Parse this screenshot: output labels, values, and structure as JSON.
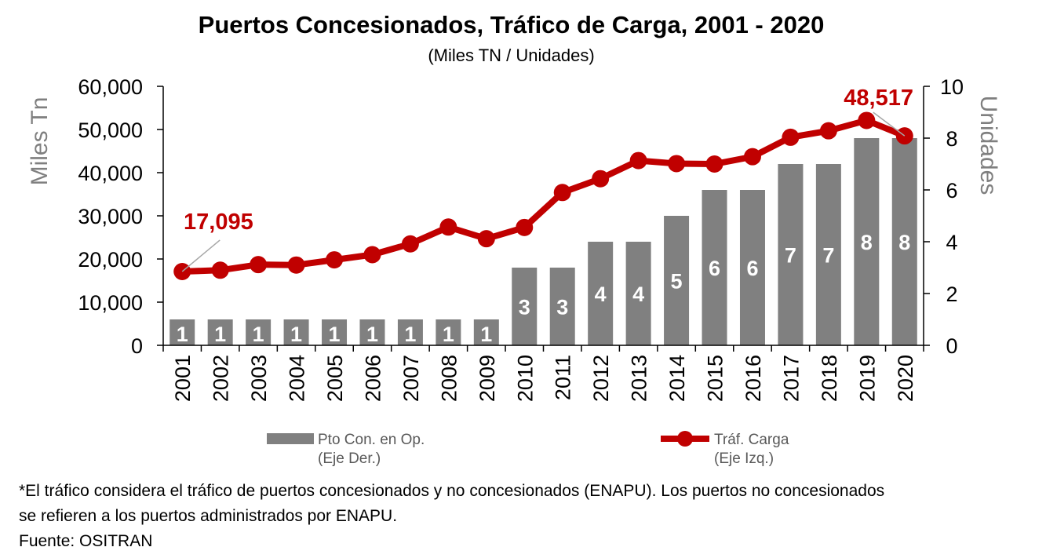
{
  "title": "Puertos Concesionados, Tráfico de Carga, 2001 - 2020",
  "subtitle": "(Miles TN / Unidades)",
  "colors": {
    "bars": "#808080",
    "line": "#c00000",
    "callout": "#c00000",
    "axis_title": "#7f7f7f"
  },
  "chart_data": {
    "type": "bar",
    "categories": [
      "2001",
      "2002",
      "2003",
      "2004",
      "2005",
      "2006",
      "2007",
      "2008",
      "2009",
      "2010",
      "2011",
      "2012",
      "2013",
      "2014",
      "2015",
      "2016",
      "2017",
      "2018",
      "2019",
      "2020"
    ],
    "series": [
      {
        "name": "Pto Con. en Op.",
        "type": "bar",
        "axis": "right",
        "values": [
          1,
          1,
          1,
          1,
          1,
          1,
          1,
          1,
          1,
          3,
          3,
          4,
          4,
          5,
          6,
          6,
          7,
          7,
          8,
          8
        ],
        "data_labels": [
          "1",
          "1",
          "1",
          "1",
          "1",
          "1",
          "1",
          "1",
          "1",
          "3",
          "3",
          "4",
          "4",
          "5",
          "6",
          "6",
          "7",
          "7",
          "8",
          "8"
        ]
      },
      {
        "name": "Tráf. Carga",
        "type": "line",
        "axis": "left",
        "values": [
          17095,
          17400,
          18700,
          18600,
          19800,
          21000,
          23500,
          27400,
          24700,
          27300,
          35400,
          38600,
          42800,
          42100,
          42000,
          43700,
          48200,
          49700,
          52100,
          48517
        ]
      }
    ],
    "ylabel": "Miles Tn",
    "ylim": [
      0,
      60000
    ],
    "yticks": [
      "0",
      "10,000",
      "20,000",
      "30,000",
      "40,000",
      "50,000",
      "60,000"
    ],
    "y2label": "Unidades",
    "y2lim": [
      0,
      10
    ],
    "y2ticks": [
      "0",
      "2",
      "4",
      "6",
      "8",
      "10"
    ],
    "callouts": [
      {
        "text": "17,095",
        "category": "2001"
      },
      {
        "text": "48,517",
        "category": "2020"
      }
    ],
    "legend": [
      {
        "label": "Pto Con. en Op.",
        "sublabel": "(Eje Der.)",
        "type": "bar"
      },
      {
        "label": "Tráf. Carga",
        "sublabel": "(Eje Izq.)",
        "type": "line"
      }
    ],
    "legend_position": "bottom",
    "grid": false
  },
  "notes": {
    "line1": "*El tráfico considera el tráfico de puertos concesionados y no concesionados (ENAPU). Los puertos no concesionados",
    "line2": "se refieren a los puertos administrados por ENAPU.",
    "source": "Fuente: OSITRAN"
  }
}
